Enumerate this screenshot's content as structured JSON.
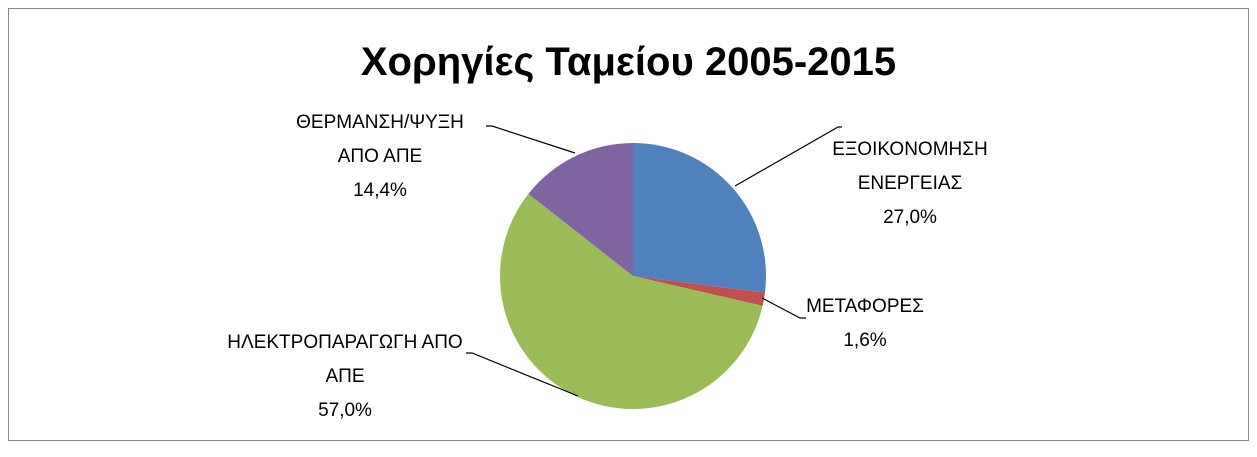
{
  "chart_data": {
    "type": "pie",
    "title": "Χορηγίες Ταμείου 2005-2015",
    "categories": [
      "ΕΞΟΙΚΟΝΟΜΗΣΗ ΕΝΕΡΓΕΙΑΣ",
      "ΜΕΤΑΦΟΡΕΣ",
      "ΗΛΕΚΤΡΟΠΑΡΑΓΩΓΗ ΑΠΟ ΑΠΕ",
      "ΘΕΡΜΑΝΣΗ/ΨΥΞΗ ΑΠΟ ΑΠΕ"
    ],
    "values": [
      27.0,
      1.6,
      57.0,
      14.4
    ],
    "value_labels": [
      "27,0%",
      "1,6%",
      "57,0%",
      "14,4%"
    ],
    "colors": [
      "#4f81bd",
      "#c0504d",
      "#9bbb59",
      "#8064a2"
    ]
  }
}
